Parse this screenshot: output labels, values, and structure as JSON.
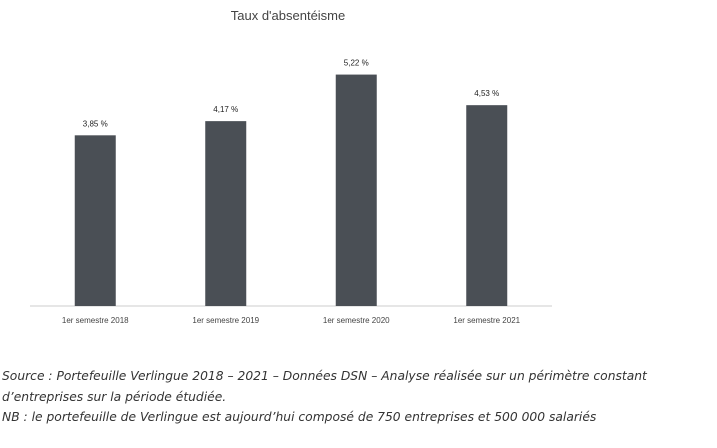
{
  "chart_data": {
    "type": "bar",
    "title": "Taux d'absentéisme",
    "categories": [
      "1er semestre 2018",
      "1er semestre 2019",
      "1er semestre 2020",
      "1er semestre 2021"
    ],
    "values": [
      3.85,
      4.17,
      5.22,
      4.53
    ],
    "data_labels": [
      "3,85 %",
      "4,17 %",
      "5,22 %",
      "4,53 %"
    ],
    "xlabel": "",
    "ylabel": "",
    "ylim": [
      0,
      6
    ],
    "grid": false,
    "legend": "none",
    "bar_color": "#4a4f55",
    "axis_color": "#cccccc"
  },
  "notes": {
    "source": "Source : Portefeuille Verlingue 2018 – 2021 – Données DSN – Analyse réalisée sur un périmètre constant d’entreprises sur la période étudiée.",
    "nb": "NB : le portefeuille de Verlingue est aujourd’hui composé de 750 entreprises et 500 000 salariés"
  }
}
